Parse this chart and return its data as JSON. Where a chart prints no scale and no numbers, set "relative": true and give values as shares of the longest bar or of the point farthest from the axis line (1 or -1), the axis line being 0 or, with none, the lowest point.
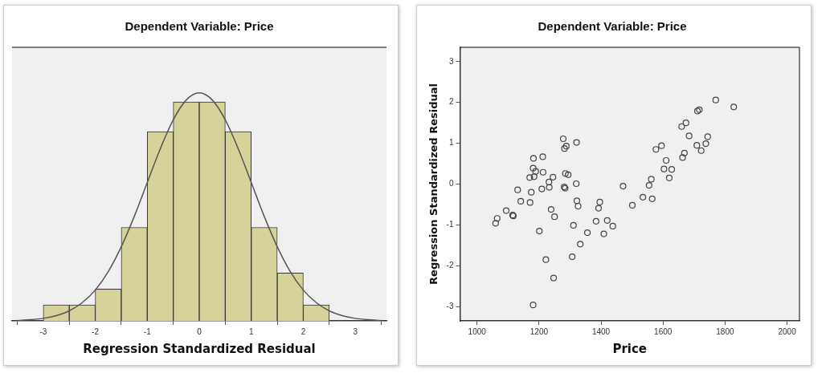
{
  "chart_data": [
    {
      "type": "histogram",
      "title": "Dependent Variable: Price",
      "xlabel": "Regression Standardized Residual",
      "relative": true,
      "tick_labels": "x",
      "bins": [
        -3,
        -2.5,
        -2,
        -1.5,
        -1,
        -0.5,
        0,
        0.5,
        1,
        1.5,
        2,
        2.5
      ],
      "values": [
        0.07,
        0.07,
        0.14,
        0.41,
        0.83,
        0.96,
        0.96,
        0.83,
        0.41,
        0.21,
        0.07
      ],
      "color": "#d6d29a",
      "xlim": [
        -3.6,
        3.6
      ],
      "xticks": [
        -3,
        -2,
        -1,
        0,
        1,
        2,
        3
      ],
      "series": [
        {
          "type": "line",
          "color": "#555555",
          "x": [
            -3.5,
            -3.25,
            -3,
            -2.75,
            -2.5,
            -2.25,
            -2,
            -1.75,
            -1.5,
            -1.25,
            -1,
            -0.75,
            -0.5,
            -0.25,
            0,
            0.25,
            0.5,
            0.75,
            1,
            1.25,
            1.5,
            1.75,
            2,
            2.25,
            2.5,
            2.75,
            3,
            3.25,
            3.5
          ],
          "values": [
            0.002,
            0.005,
            0.011,
            0.023,
            0.044,
            0.08,
            0.135,
            0.216,
            0.325,
            0.458,
            0.607,
            0.755,
            0.882,
            0.969,
            1,
            0.969,
            0.882,
            0.755,
            0.607,
            0.458,
            0.325,
            0.216,
            0.135,
            0.08,
            0.044,
            0.023,
            0.011,
            0.005,
            0.002
          ]
        }
      ]
    },
    {
      "type": "scatter",
      "title": "Dependent Variable: Price",
      "xlabel": "Price",
      "ylabel": "Regression Standardized Residual",
      "marker": "circle",
      "color": "#444444",
      "xlim": [
        945,
        2040
      ],
      "xticks": [
        1000,
        1200,
        1400,
        1600,
        1800,
        2000
      ],
      "ylim": [
        -3.35,
        3.35
      ],
      "yticks": [
        -3,
        -2,
        -1,
        0,
        1,
        2,
        3
      ],
      "x": [
        1060,
        1065,
        1094,
        1115,
        1117,
        1131,
        1141,
        1170,
        1171,
        1175,
        1182,
        1181,
        1184,
        1189,
        1181,
        1201,
        1209,
        1212,
        1213,
        1222,
        1232,
        1233,
        1239,
        1245,
        1247,
        1250,
        1278,
        1282,
        1288,
        1281,
        1284,
        1285,
        1294,
        1307,
        1311,
        1320,
        1321,
        1322,
        1326,
        1333,
        1356,
        1384,
        1392,
        1396,
        1409,
        1420,
        1438,
        1471,
        1501,
        1535,
        1555,
        1562,
        1565,
        1577,
        1595,
        1603,
        1610,
        1620,
        1628,
        1660,
        1663,
        1669,
        1674,
        1684,
        1709,
        1711,
        1717,
        1723,
        1738,
        1744,
        1770,
        1828
      ],
      "values": [
        -0.96,
        -0.84,
        -0.65,
        -0.76,
        -0.78,
        -0.14,
        -0.42,
        0.16,
        -0.45,
        -0.2,
        0.63,
        0.39,
        0.18,
        0.31,
        -2.96,
        -1.15,
        -0.12,
        0.67,
        0.29,
        -1.85,
        0.05,
        -0.08,
        -0.62,
        0.17,
        -2.3,
        -0.8,
        1.11,
        0.87,
        0.93,
        -0.07,
        -0.1,
        0.26,
        0.23,
        -1.78,
        -1.01,
        0.01,
        1.02,
        -0.41,
        -0.54,
        -1.47,
        -1.19,
        -0.91,
        -0.59,
        -0.44,
        -1.22,
        -0.89,
        -1.03,
        -0.05,
        -0.52,
        -0.32,
        -0.03,
        0.12,
        -0.36,
        0.85,
        0.94,
        0.37,
        0.58,
        0.15,
        0.36,
        1.41,
        0.65,
        0.76,
        1.5,
        1.18,
        0.95,
        1.79,
        1.82,
        0.82,
        0.99,
        1.16,
        2.06,
        1.89
      ]
    }
  ]
}
